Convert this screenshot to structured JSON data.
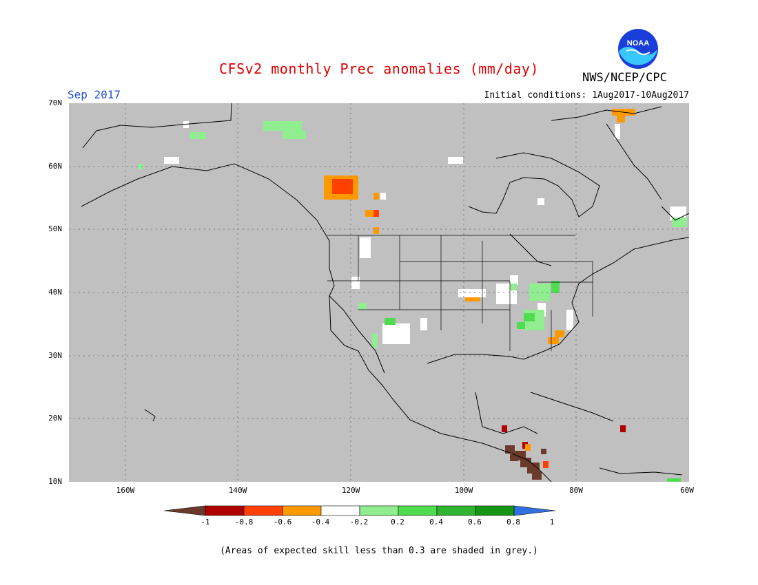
{
  "header": {
    "title": "CFSv2 monthly Prec anomalies (mm/day)",
    "month": "Sep 2017",
    "initial_conditions": "Initial conditions: 1Aug2017-10Aug2017",
    "agency": "NWS/NCEP/CPC",
    "logo_text": "NOAA"
  },
  "map": {
    "background": "#c0c0c0",
    "lat_labels": [
      "70N",
      "60N",
      "50N",
      "40N",
      "30N",
      "20N",
      "10N"
    ],
    "lon_labels": [
      "160W",
      "140W",
      "120W",
      "100W",
      "80W",
      "60W"
    ]
  },
  "colorbar": {
    "tick_labels": [
      "-1",
      "-0.8",
      "-0.6",
      "-0.4",
      "-0.2",
      "0.2",
      "0.4",
      "0.6",
      "0.8",
      "1"
    ],
    "colors": [
      "#6b3a2a",
      "#b00000",
      "#ff4000",
      "#ff9900",
      "#ffffff",
      "#90ee90",
      "#50dc50",
      "#30b430",
      "#149614",
      "#3070e0"
    ]
  },
  "footnote": "(Areas of expected skill less than 0.3 are shaded in grey.)"
}
